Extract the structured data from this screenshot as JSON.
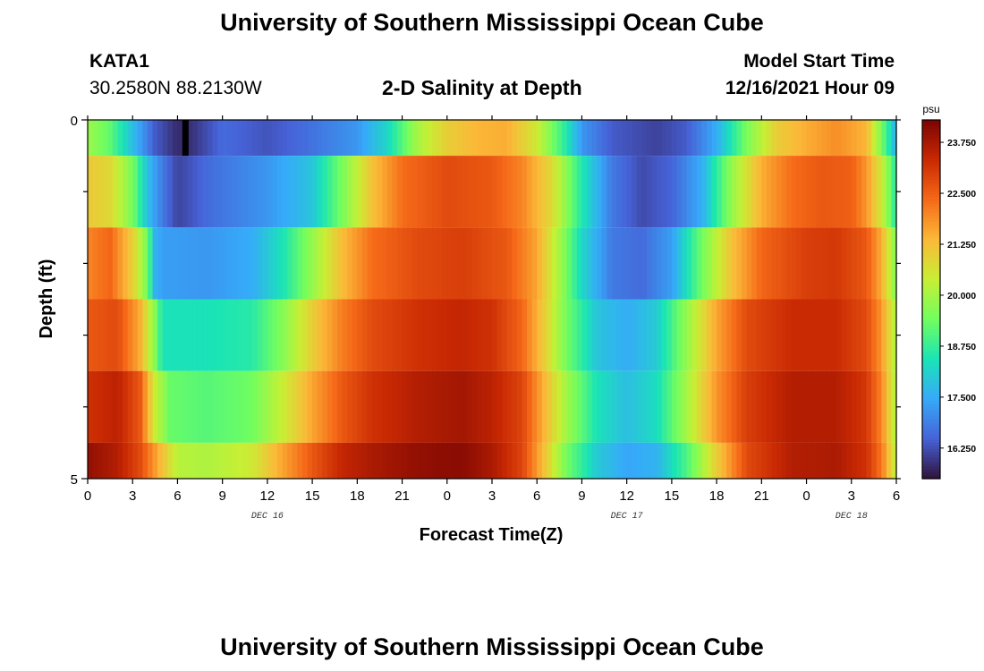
{
  "page": {
    "title": "University of Southern Mississippi Ocean Cube",
    "station": "KATA1",
    "coords": "30.2580N  88.2130W",
    "subtitle": "2-D Salinity at Depth",
    "model_label": "Model Start Time",
    "model_time": "12/16/2021 Hour 09",
    "footer_title": "University of Southern Mississippi Ocean Cube"
  },
  "chart_data": {
    "type": "heatmap",
    "title": "2-D Salinity at Depth",
    "xlabel": "Forecast Time(Z)",
    "ylabel": "Depth (ft)",
    "x_tick_labels": [
      "0",
      "3",
      "6",
      "9",
      "12",
      "15",
      "18",
      "21",
      "0",
      "3",
      "6",
      "9",
      "12",
      "15",
      "18",
      "21",
      "0",
      "3",
      "6"
    ],
    "x_hours": [
      0,
      3,
      6,
      9,
      12,
      15,
      18,
      21,
      24,
      27,
      30,
      33,
      36,
      39,
      42,
      45,
      48,
      51,
      54
    ],
    "date_labels": [
      {
        "label": "DEC 16",
        "hour": 12
      },
      {
        "label": "DEC 17",
        "hour": 36
      },
      {
        "label": "DEC 18",
        "hour": 51
      }
    ],
    "y_tick_labels": [
      "0",
      "5"
    ],
    "ylim": [
      0,
      5
    ],
    "xlim_hours": [
      0,
      54
    ],
    "colorbar": {
      "unit": "psu",
      "tick_labels": [
        "23.750",
        "22.500",
        "21.250",
        "20.000",
        "18.750",
        "17.500",
        "16.250"
      ],
      "tick_values": [
        23.75,
        22.5,
        21.25,
        20.0,
        18.75,
        17.5,
        16.25
      ],
      "range": [
        15.5,
        24.3
      ],
      "colormap": [
        "#30123b",
        "#4662d7",
        "#36aaf9",
        "#1ae4b6",
        "#72fe5e",
        "#c7ef34",
        "#fbb938",
        "#f56918",
        "#c92903",
        "#7a0403"
      ]
    },
    "depth_levels": [
      {
        "depth_range": [
          0,
          0.5
        ],
        "profile": [
          [
            0,
            19.9
          ],
          [
            1.5,
            19.2
          ],
          [
            3,
            17.8
          ],
          [
            4.5,
            16.4
          ],
          [
            6,
            15.8
          ],
          [
            7,
            15.9
          ],
          [
            9,
            16.6
          ],
          [
            12,
            16.3
          ],
          [
            15,
            16.7
          ],
          [
            18,
            17.2
          ],
          [
            20,
            18.2
          ],
          [
            22,
            20.0
          ],
          [
            24,
            21.0
          ],
          [
            26,
            21.4
          ],
          [
            28,
            21.5
          ],
          [
            30,
            20.5
          ],
          [
            32,
            18.5
          ],
          [
            33,
            17.2
          ],
          [
            35,
            16.4
          ],
          [
            38,
            16.1
          ],
          [
            40,
            16.4
          ],
          [
            42,
            17.5
          ],
          [
            44,
            19.5
          ],
          [
            46,
            21.0
          ],
          [
            48,
            21.5
          ],
          [
            50,
            21.9
          ],
          [
            52,
            21.4
          ],
          [
            53,
            19.5
          ],
          [
            54,
            17.5
          ]
        ]
      },
      {
        "depth_range": [
          0.5,
          1.5
        ],
        "profile": [
          [
            0,
            21.1
          ],
          [
            1.5,
            20.8
          ],
          [
            3,
            19.5
          ],
          [
            4,
            17.8
          ],
          [
            5,
            16.8
          ],
          [
            6,
            16.1
          ],
          [
            8,
            16.6
          ],
          [
            12,
            17.2
          ],
          [
            15,
            17.9
          ],
          [
            17,
            19.5
          ],
          [
            19,
            21.2
          ],
          [
            21,
            22.3
          ],
          [
            24,
            22.8
          ],
          [
            27,
            22.6
          ],
          [
            29,
            22.0
          ],
          [
            31,
            20.8
          ],
          [
            33,
            18.5
          ],
          [
            35,
            16.8
          ],
          [
            37,
            16.2
          ],
          [
            39,
            16.5
          ],
          [
            41,
            17.5
          ],
          [
            43,
            19.8
          ],
          [
            45,
            21.5
          ],
          [
            47,
            22.3
          ],
          [
            49,
            22.6
          ],
          [
            51,
            22.5
          ],
          [
            52,
            21.8
          ],
          [
            53,
            20.5
          ],
          [
            54,
            18.5
          ]
        ]
      },
      {
        "depth_range": [
          1.5,
          2.5
        ],
        "profile": [
          [
            0,
            22.0
          ],
          [
            1.5,
            22.4
          ],
          [
            3,
            21.0
          ],
          [
            4,
            19.4
          ],
          [
            4.5,
            17.6
          ],
          [
            5,
            17.3
          ],
          [
            8,
            17.2
          ],
          [
            11,
            17.5
          ],
          [
            13,
            18.4
          ],
          [
            15,
            19.8
          ],
          [
            17,
            21.3
          ],
          [
            19,
            22.3
          ],
          [
            22,
            22.8
          ],
          [
            25,
            23.0
          ],
          [
            28,
            22.6
          ],
          [
            30,
            21.6
          ],
          [
            31.5,
            20.0
          ],
          [
            33,
            18.2
          ],
          [
            35,
            16.8
          ],
          [
            37,
            16.6
          ],
          [
            39,
            17.3
          ],
          [
            41,
            19.4
          ],
          [
            43,
            21.2
          ],
          [
            45,
            22.4
          ],
          [
            48,
            23.0
          ],
          [
            50,
            23.1
          ],
          [
            52,
            22.6
          ],
          [
            53,
            21.5
          ],
          [
            54,
            19.5
          ]
        ]
      },
      {
        "depth_range": [
          2.5,
          3.5
        ],
        "profile": [
          [
            0,
            22.6
          ],
          [
            2,
            22.8
          ],
          [
            3.5,
            21.5
          ],
          [
            4.5,
            19.6
          ],
          [
            5,
            18.4
          ],
          [
            8,
            18.4
          ],
          [
            11,
            18.6
          ],
          [
            13,
            19.6
          ],
          [
            15,
            21.0
          ],
          [
            17,
            22.1
          ],
          [
            19,
            22.8
          ],
          [
            22,
            23.2
          ],
          [
            25,
            23.4
          ],
          [
            27,
            23.2
          ],
          [
            29,
            22.4
          ],
          [
            30.5,
            21.0
          ],
          [
            32,
            19.4
          ],
          [
            34,
            17.9
          ],
          [
            36,
            17.5
          ],
          [
            38,
            18.0
          ],
          [
            40,
            19.8
          ],
          [
            42,
            21.6
          ],
          [
            44,
            22.8
          ],
          [
            47,
            23.3
          ],
          [
            50,
            23.3
          ],
          [
            52,
            22.8
          ],
          [
            53,
            21.8
          ],
          [
            54,
            20.0
          ]
        ]
      },
      {
        "depth_range": [
          3.5,
          4.5
        ],
        "profile": [
          [
            0,
            23.2
          ],
          [
            2,
            23.5
          ],
          [
            3.5,
            22.6
          ],
          [
            4.5,
            20.4
          ],
          [
            5.5,
            19.3
          ],
          [
            8,
            19.1
          ],
          [
            11,
            19.4
          ],
          [
            13,
            20.4
          ],
          [
            15,
            21.6
          ],
          [
            17,
            22.6
          ],
          [
            19,
            23.2
          ],
          [
            22,
            23.6
          ],
          [
            25,
            23.8
          ],
          [
            27,
            23.5
          ],
          [
            29,
            22.9
          ],
          [
            30.5,
            21.4
          ],
          [
            32,
            19.9
          ],
          [
            34,
            18.4
          ],
          [
            36,
            17.8
          ],
          [
            38,
            18.3
          ],
          [
            40,
            20.0
          ],
          [
            42,
            21.8
          ],
          [
            44,
            23.0
          ],
          [
            47,
            23.6
          ],
          [
            50,
            23.6
          ],
          [
            52,
            23.1
          ],
          [
            53,
            22.0
          ],
          [
            54,
            20.0
          ]
        ]
      },
      {
        "depth_range": [
          4.5,
          5
        ],
        "profile": [
          [
            0,
            24.0
          ],
          [
            2,
            23.6
          ],
          [
            3.5,
            22.8
          ],
          [
            5,
            21.2
          ],
          [
            6,
            20.2
          ],
          [
            8,
            20.1
          ],
          [
            11,
            20.5
          ],
          [
            13,
            21.6
          ],
          [
            15,
            22.6
          ],
          [
            17,
            23.4
          ],
          [
            19,
            23.7
          ],
          [
            22,
            24.0
          ],
          [
            25,
            24.1
          ],
          [
            27,
            23.7
          ],
          [
            29,
            22.9
          ],
          [
            30.5,
            21.2
          ],
          [
            32,
            19.4
          ],
          [
            34,
            18.0
          ],
          [
            36,
            17.4
          ],
          [
            38,
            17.6
          ],
          [
            40,
            19.0
          ],
          [
            42,
            21.0
          ],
          [
            44,
            22.8
          ],
          [
            47,
            23.6
          ],
          [
            50,
            23.7
          ],
          [
            52,
            23.2
          ],
          [
            53,
            22.2
          ],
          [
            54,
            20.2
          ]
        ]
      }
    ],
    "marker": {
      "hour": 6.5,
      "depth_range": [
        0,
        0.5
      ],
      "color": "#000000"
    }
  }
}
